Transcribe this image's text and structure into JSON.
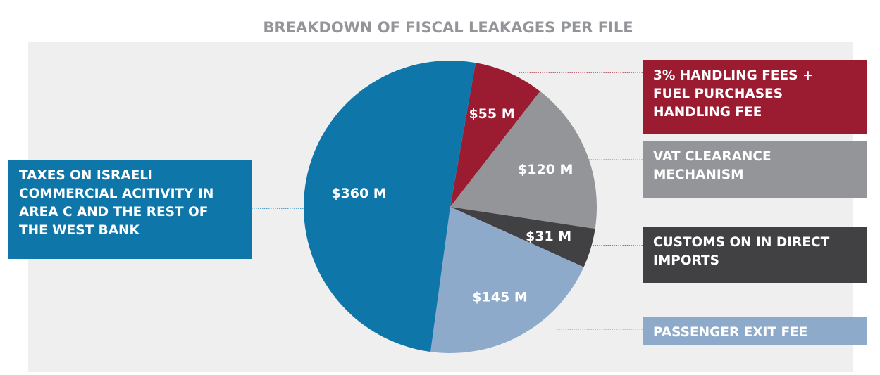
{
  "chart_data": {
    "type": "pie",
    "title": "BREAKDOWN OF FISCAL LEAKAGES PER FILE",
    "categories": [
      [
        "3% HANDLING FEES +",
        "FUEL PURCHASES",
        "HANDLING FEE"
      ],
      [
        "VAT CLEARANCE",
        "MECHANISM"
      ],
      [
        "CUSTOMS ON IN DIRECT",
        "IMPORTS"
      ],
      [
        "PASSENGER EXIT FEE"
      ],
      [
        "TAXES ON ISRAELI",
        "COMMERCIAL ACITIVITY IN",
        "AREA C AND THE REST OF",
        "THE WEST BANK"
      ]
    ],
    "values": [
      55,
      120,
      31,
      145,
      360
    ],
    "value_labels": [
      "$55 M",
      "$120 M",
      "$31 M",
      "$145 M",
      "$360 M"
    ],
    "colors": [
      "#9b1b30",
      "#939598",
      "#414042",
      "#8eaacb",
      "#0e76a8"
    ]
  }
}
